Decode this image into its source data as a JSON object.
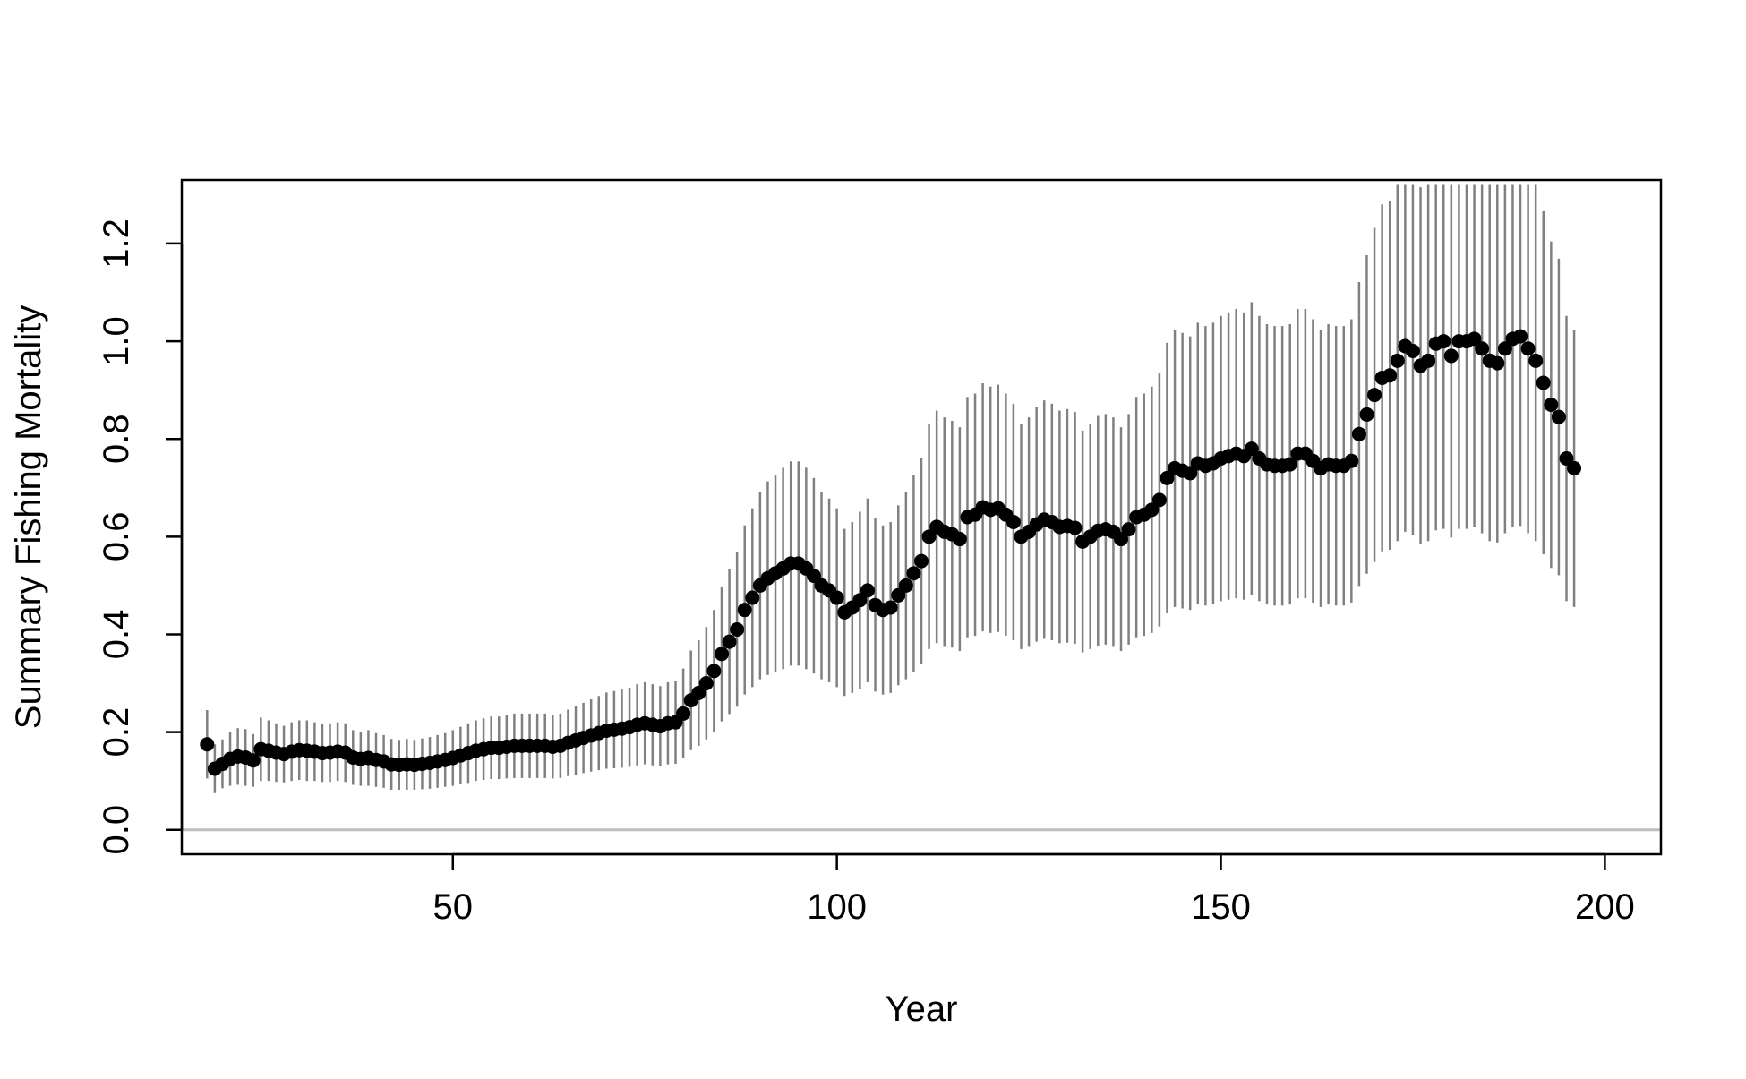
{
  "chart_data": {
    "type": "scatter",
    "title": "",
    "xlabel": "Year",
    "ylabel": "Summary Fishing Mortality",
    "xlim": [
      14.7,
      207.3
    ],
    "ylim": [
      -0.05,
      1.33
    ],
    "x_ticks": [
      50,
      100,
      150,
      200
    ],
    "y_ticks": [
      0.0,
      0.2,
      0.4,
      0.6,
      0.8,
      1.0,
      1.2
    ],
    "x_tick_labels": [
      "50",
      "100",
      "150",
      "200"
    ],
    "y_tick_labels": [
      "0.0",
      "0.2",
      "0.4",
      "0.6",
      "0.8",
      "1.0",
      "1.2"
    ],
    "reference_line": {
      "y": 0.0,
      "color": "#bebebe"
    },
    "grid": false,
    "legend": "none",
    "colors": {
      "points": "#000000",
      "error_bars": "#808080",
      "frame": "#000000"
    },
    "series": [
      {
        "x": [
          18,
          19,
          20,
          21,
          22,
          23,
          24,
          25,
          26,
          27,
          28,
          29,
          30,
          31,
          32,
          33,
          34,
          35,
          36,
          37,
          38,
          39,
          40,
          41,
          42,
          43,
          44,
          45,
          46,
          47,
          48,
          49,
          50,
          51,
          52,
          53,
          54,
          55,
          56,
          57,
          58,
          59,
          60,
          61,
          62,
          63,
          64,
          65,
          66,
          67,
          68,
          69,
          70,
          71,
          72,
          73,
          74,
          75,
          76,
          77,
          78,
          79,
          80,
          81,
          82,
          83,
          84,
          85,
          86,
          87,
          88,
          89,
          90,
          91,
          92,
          93,
          94,
          95,
          96,
          97,
          98,
          99,
          100,
          101,
          102,
          103,
          104,
          105,
          106,
          107,
          108,
          109,
          110,
          111,
          112,
          113,
          114,
          115,
          116,
          117,
          118,
          119,
          120,
          121,
          122,
          123,
          124,
          125,
          126,
          127,
          128,
          129,
          130,
          131,
          132,
          133,
          134,
          135,
          136,
          137,
          138,
          139,
          140,
          141,
          142,
          143,
          144,
          145,
          146,
          147,
          148,
          149,
          150,
          151,
          152,
          153,
          154,
          155,
          156,
          157,
          158,
          159,
          160,
          161,
          162,
          163,
          164,
          165,
          166,
          167,
          168,
          169,
          170,
          171,
          172,
          173,
          174,
          175,
          176,
          177,
          178,
          179,
          180,
          181,
          182,
          183,
          184,
          185,
          186,
          187,
          188,
          189,
          190,
          191,
          192,
          193,
          194,
          195,
          196
        ],
        "y": [
          0.175,
          0.125,
          0.135,
          0.145,
          0.15,
          0.148,
          0.142,
          0.165,
          0.162,
          0.158,
          0.155,
          0.16,
          0.163,
          0.162,
          0.16,
          0.157,
          0.158,
          0.16,
          0.158,
          0.148,
          0.145,
          0.147,
          0.143,
          0.14,
          0.134,
          0.133,
          0.134,
          0.133,
          0.135,
          0.137,
          0.14,
          0.143,
          0.147,
          0.152,
          0.157,
          0.162,
          0.165,
          0.168,
          0.168,
          0.17,
          0.172,
          0.172,
          0.172,
          0.172,
          0.172,
          0.17,
          0.172,
          0.178,
          0.183,
          0.188,
          0.193,
          0.198,
          0.203,
          0.205,
          0.207,
          0.21,
          0.215,
          0.218,
          0.215,
          0.212,
          0.218,
          0.22,
          0.238,
          0.265,
          0.28,
          0.3,
          0.325,
          0.36,
          0.385,
          0.41,
          0.45,
          0.475,
          0.5,
          0.515,
          0.525,
          0.535,
          0.545,
          0.545,
          0.535,
          0.52,
          0.5,
          0.49,
          0.475,
          0.445,
          0.455,
          0.47,
          0.49,
          0.46,
          0.45,
          0.455,
          0.48,
          0.5,
          0.525,
          0.55,
          0.6,
          0.62,
          0.61,
          0.605,
          0.595,
          0.64,
          0.645,
          0.66,
          0.655,
          0.658,
          0.645,
          0.63,
          0.6,
          0.61,
          0.625,
          0.635,
          0.63,
          0.62,
          0.622,
          0.618,
          0.59,
          0.6,
          0.612,
          0.615,
          0.61,
          0.595,
          0.615,
          0.64,
          0.645,
          0.655,
          0.675,
          0.72,
          0.74,
          0.735,
          0.73,
          0.75,
          0.745,
          0.75,
          0.76,
          0.765,
          0.77,
          0.765,
          0.78,
          0.76,
          0.748,
          0.745,
          0.745,
          0.748,
          0.77,
          0.77,
          0.755,
          0.74,
          0.748,
          0.745,
          0.745,
          0.755,
          0.81,
          0.85,
          0.89,
          0.925,
          0.93,
          0.96,
          0.99,
          0.98,
          0.95,
          0.96,
          0.995,
          1.0,
          0.97,
          1.0,
          1.0,
          1.005,
          0.985,
          0.96,
          0.955,
          0.985,
          1.005,
          1.01,
          0.985,
          0.96,
          0.915,
          0.87,
          0.845,
          0.76,
          0.74
        ],
        "lower": [
          0.105,
          0.075,
          0.085,
          0.09,
          0.092,
          0.09,
          0.088,
          0.1,
          0.1,
          0.098,
          0.097,
          0.1,
          0.102,
          0.1,
          0.1,
          0.098,
          0.098,
          0.1,
          0.098,
          0.092,
          0.09,
          0.09,
          0.088,
          0.086,
          0.082,
          0.082,
          0.082,
          0.082,
          0.083,
          0.084,
          0.086,
          0.088,
          0.09,
          0.093,
          0.096,
          0.1,
          0.102,
          0.104,
          0.104,
          0.105,
          0.106,
          0.106,
          0.106,
          0.106,
          0.106,
          0.105,
          0.106,
          0.11,
          0.113,
          0.116,
          0.119,
          0.122,
          0.125,
          0.126,
          0.127,
          0.129,
          0.132,
          0.134,
          0.132,
          0.13,
          0.134,
          0.135,
          0.146,
          0.163,
          0.172,
          0.185,
          0.2,
          0.222,
          0.237,
          0.252,
          0.277,
          0.292,
          0.308,
          0.317,
          0.323,
          0.329,
          0.336,
          0.336,
          0.329,
          0.32,
          0.308,
          0.302,
          0.292,
          0.274,
          0.28,
          0.289,
          0.302,
          0.283,
          0.277,
          0.28,
          0.296,
          0.308,
          0.323,
          0.339,
          0.37,
          0.382,
          0.376,
          0.373,
          0.366,
          0.394,
          0.397,
          0.406,
          0.403,
          0.405,
          0.397,
          0.388,
          0.37,
          0.376,
          0.385,
          0.391,
          0.388,
          0.382,
          0.383,
          0.381,
          0.363,
          0.37,
          0.377,
          0.379,
          0.376,
          0.366,
          0.379,
          0.394,
          0.397,
          0.403,
          0.416,
          0.443,
          0.456,
          0.453,
          0.45,
          0.462,
          0.459,
          0.462,
          0.468,
          0.471,
          0.474,
          0.471,
          0.48,
          0.468,
          0.461,
          0.459,
          0.459,
          0.461,
          0.474,
          0.474,
          0.465,
          0.456,
          0.461,
          0.459,
          0.459,
          0.465,
          0.499,
          0.524,
          0.548,
          0.57,
          0.573,
          0.591,
          0.61,
          0.604,
          0.585,
          0.591,
          0.613,
          0.616,
          0.598,
          0.616,
          0.616,
          0.619,
          0.607,
          0.591,
          0.588,
          0.607,
          0.619,
          0.622,
          0.607,
          0.591,
          0.564,
          0.536,
          0.521,
          0.468,
          0.456
        ],
        "upper": [
          0.245,
          0.175,
          0.185,
          0.2,
          0.208,
          0.206,
          0.196,
          0.23,
          0.224,
          0.218,
          0.213,
          0.22,
          0.224,
          0.224,
          0.22,
          0.216,
          0.218,
          0.22,
          0.218,
          0.204,
          0.2,
          0.204,
          0.198,
          0.194,
          0.186,
          0.184,
          0.186,
          0.184,
          0.187,
          0.19,
          0.194,
          0.198,
          0.204,
          0.211,
          0.218,
          0.224,
          0.228,
          0.232,
          0.232,
          0.235,
          0.238,
          0.238,
          0.238,
          0.238,
          0.238,
          0.235,
          0.238,
          0.246,
          0.253,
          0.26,
          0.267,
          0.274,
          0.281,
          0.284,
          0.287,
          0.291,
          0.298,
          0.302,
          0.298,
          0.294,
          0.302,
          0.305,
          0.33,
          0.367,
          0.388,
          0.415,
          0.45,
          0.498,
          0.533,
          0.568,
          0.623,
          0.658,
          0.692,
          0.713,
          0.727,
          0.741,
          0.754,
          0.754,
          0.741,
          0.72,
          0.692,
          0.678,
          0.658,
          0.616,
          0.63,
          0.651,
          0.678,
          0.637,
          0.623,
          0.63,
          0.664,
          0.692,
          0.727,
          0.761,
          0.83,
          0.858,
          0.844,
          0.837,
          0.824,
          0.886,
          0.893,
          0.914,
          0.907,
          0.911,
          0.893,
          0.872,
          0.83,
          0.844,
          0.865,
          0.879,
          0.872,
          0.858,
          0.861,
          0.855,
          0.817,
          0.83,
          0.847,
          0.851,
          0.844,
          0.824,
          0.851,
          0.886,
          0.893,
          0.907,
          0.934,
          0.997,
          1.024,
          1.017,
          1.01,
          1.038,
          1.031,
          1.038,
          1.052,
          1.059,
          1.066,
          1.059,
          1.08,
          1.052,
          1.035,
          1.031,
          1.031,
          1.035,
          1.066,
          1.066,
          1.045,
          1.024,
          1.035,
          1.031,
          1.031,
          1.045,
          1.121,
          1.176,
          1.232,
          1.28,
          1.287,
          1.329,
          1.37,
          1.356,
          1.315,
          1.329,
          1.377,
          1.384,
          1.342,
          1.384,
          1.384,
          1.391,
          1.363,
          1.329,
          1.322,
          1.363,
          1.391,
          1.398,
          1.363,
          1.329,
          1.266,
          1.204,
          1.169,
          1.052,
          1.024
        ]
      }
    ]
  }
}
